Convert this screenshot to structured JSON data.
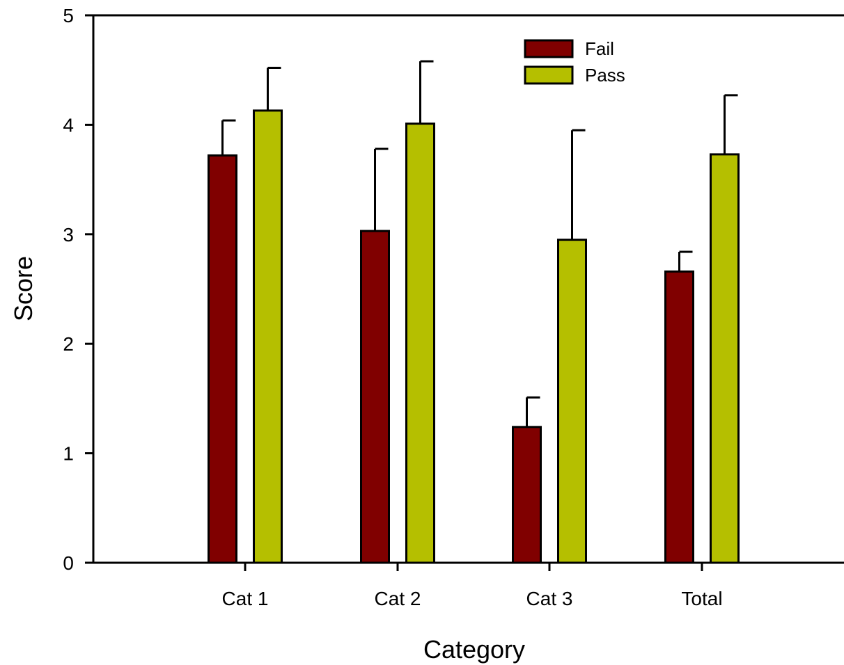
{
  "chart_data": {
    "type": "bar",
    "title": "",
    "xlabel": "Category",
    "ylabel": "Score",
    "ylim": [
      0,
      5
    ],
    "yticks": [
      "0",
      "1",
      "2",
      "3",
      "4",
      "5"
    ],
    "categories": [
      "Cat 1",
      "Cat 2",
      "Cat 3",
      "Total"
    ],
    "series": [
      {
        "name": "Fail",
        "color": "#800000",
        "values": [
          3.72,
          3.03,
          1.24,
          2.66
        ],
        "errors": [
          0.32,
          0.75,
          0.27,
          0.18
        ]
      },
      {
        "name": "Pass",
        "color": "#b5bf00",
        "values": [
          4.13,
          4.01,
          2.95,
          3.73
        ],
        "errors": [
          0.39,
          0.57,
          1.0,
          0.54
        ]
      }
    ],
    "legend_position": "top-center",
    "grid": false
  }
}
